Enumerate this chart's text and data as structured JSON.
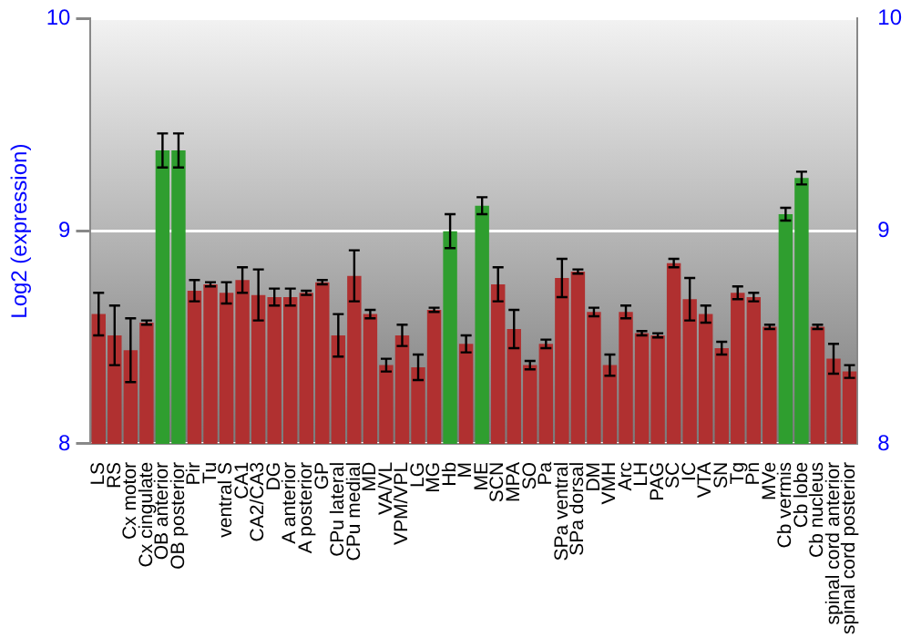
{
  "chart_data": {
    "type": "bar",
    "ylabel": "Log2 (expression)",
    "categories": [
      "LS",
      "RS",
      "Cx motor",
      "Cx cingulate",
      "OB anterior",
      "OB posterior",
      "Pir",
      "Tu",
      "ventral S",
      "CA1",
      "CA2/CA3",
      "DG",
      "A anterior",
      "A posterior",
      "GP",
      "CPu lateral",
      "CPu medial",
      "MD",
      "VA/VL",
      "VPM/VPL",
      "LG",
      "MG",
      "Hb",
      "M",
      "ME",
      "SCN",
      "MPA",
      "SO",
      "Pa",
      "SPa ventral",
      "SPa dorsal",
      "DM",
      "VMH",
      "Arc",
      "LH",
      "PAG",
      "SC",
      "IC",
      "VTA",
      "SN",
      "Tg",
      "Pn",
      "MVe",
      "Cb vermis",
      "Cb lobe",
      "Cb nucleus",
      "spinal cord anterior",
      "spinal cord posterior"
    ],
    "values": [
      8.61,
      8.51,
      8.44,
      8.57,
      9.38,
      9.38,
      8.72,
      8.75,
      8.71,
      8.77,
      8.7,
      8.69,
      8.69,
      8.71,
      8.76,
      8.51,
      8.79,
      8.61,
      8.37,
      8.51,
      8.36,
      8.63,
      9.0,
      8.47,
      9.12,
      8.75,
      8.54,
      8.37,
      8.47,
      8.78,
      8.81,
      8.62,
      8.37,
      8.62,
      8.52,
      8.51,
      8.85,
      8.68,
      8.61,
      8.45,
      8.71,
      8.69,
      8.55,
      9.08,
      9.25,
      8.55,
      8.4,
      8.34
    ],
    "errors": [
      0.1,
      0.14,
      0.15,
      0.01,
      0.08,
      0.08,
      0.05,
      0.01,
      0.05,
      0.06,
      0.12,
      0.04,
      0.04,
      0.01,
      0.01,
      0.1,
      0.12,
      0.02,
      0.03,
      0.05,
      0.06,
      0.01,
      0.08,
      0.04,
      0.04,
      0.08,
      0.09,
      0.02,
      0.02,
      0.09,
      0.01,
      0.02,
      0.05,
      0.03,
      0.01,
      0.01,
      0.02,
      0.1,
      0.04,
      0.03,
      0.03,
      0.02,
      0.01,
      0.03,
      0.03,
      0.01,
      0.07,
      0.03
    ],
    "colors": [
      "#b03030",
      "#b03030",
      "#b03030",
      "#b03030",
      "#2f9e2f",
      "#2f9e2f",
      "#b03030",
      "#b03030",
      "#b03030",
      "#b03030",
      "#b03030",
      "#b03030",
      "#b03030",
      "#b03030",
      "#b03030",
      "#b03030",
      "#b03030",
      "#b03030",
      "#b03030",
      "#b03030",
      "#b03030",
      "#b03030",
      "#2f9e2f",
      "#b03030",
      "#2f9e2f",
      "#b03030",
      "#b03030",
      "#b03030",
      "#b03030",
      "#b03030",
      "#b03030",
      "#b03030",
      "#b03030",
      "#b03030",
      "#b03030",
      "#b03030",
      "#b03030",
      "#b03030",
      "#b03030",
      "#b03030",
      "#b03030",
      "#b03030",
      "#b03030",
      "#2f9e2f",
      "#2f9e2f",
      "#b03030",
      "#b03030",
      "#b03030"
    ],
    "ylim": [
      8,
      10
    ],
    "yticks": [
      8,
      9,
      10
    ],
    "y2lim": [
      8,
      10
    ],
    "y2ticks": [
      8,
      9,
      10
    ],
    "grid": "y",
    "legend": false
  }
}
